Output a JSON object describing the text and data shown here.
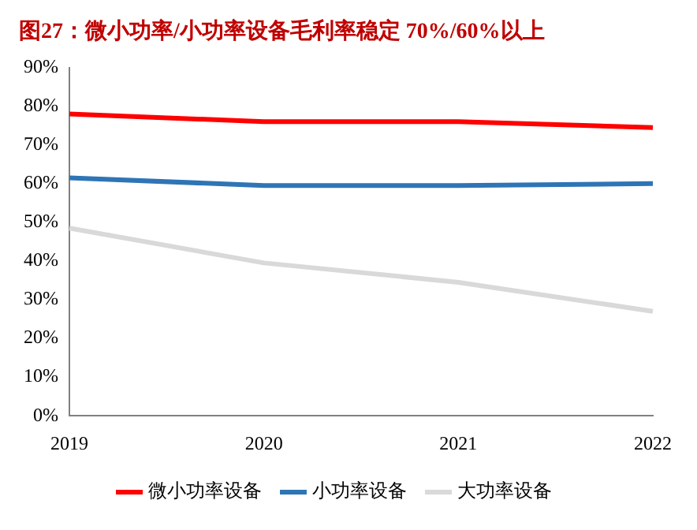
{
  "chart_data": {
    "type": "line",
    "title": "图27：微小功率/小功率设备毛利率稳定 70%/60%以上",
    "categories": [
      "2019",
      "2020",
      "2021",
      "2022"
    ],
    "series": [
      {
        "name": "微小功率设备",
        "color": "#ff0000",
        "values": [
          78,
          76,
          76,
          74.5
        ]
      },
      {
        "name": "小功率设备",
        "color": "#2e75b6",
        "values": [
          61.5,
          59.5,
          59.5,
          60
        ]
      },
      {
        "name": "大功率设备",
        "color": "#d9d9d9",
        "values": [
          48.5,
          39.5,
          34.5,
          27
        ]
      }
    ],
    "ylim": [
      0,
      90
    ],
    "yticks": [
      {
        "value": 0,
        "label": "0%"
      },
      {
        "value": 10,
        "label": "10%"
      },
      {
        "value": 20,
        "label": "20%"
      },
      {
        "value": 30,
        "label": "30%"
      },
      {
        "value": 40,
        "label": "40%"
      },
      {
        "value": 50,
        "label": "50%"
      },
      {
        "value": 60,
        "label": "60%"
      },
      {
        "value": 70,
        "label": "70%"
      },
      {
        "value": 80,
        "label": "80%"
      },
      {
        "value": 90,
        "label": "90%"
      }
    ],
    "grid": false,
    "legend": "bottom",
    "marker": "none"
  }
}
